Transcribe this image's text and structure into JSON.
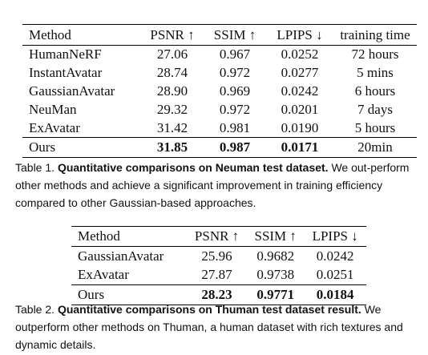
{
  "table1": {
    "headers": [
      "Method",
      "PSNR ↑",
      "SSIM ↑",
      "LPIPS ↓",
      "training time"
    ],
    "rows": [
      [
        "HumanNeRF",
        "27.06",
        "0.967",
        "0.0252",
        "72 hours"
      ],
      [
        "InstantAvatar",
        "28.74",
        "0.972",
        "0.0277",
        "5 mins"
      ],
      [
        "GaussianAvatar",
        "28.90",
        "0.969",
        "0.0242",
        "6 hours"
      ],
      [
        "NeuMan",
        "29.32",
        "0.972",
        "0.0201",
        "7 days"
      ],
      [
        "ExAvatar",
        "31.42",
        "0.981",
        "0.0190",
        "5 hours"
      ]
    ],
    "ours": [
      "Ours",
      "31.85",
      "0.987",
      "0.0171",
      "20min"
    ],
    "caption_label": "Table 1.",
    "caption_title": "Quantitative comparisons on Neuman test dataset.",
    "caption_text": "We out-perform other methods and achieve a significant improvement in training efficiency compared to other Gaussian-based approaches."
  },
  "table2": {
    "headers": [
      "Method",
      "PSNR ↑",
      "SSIM ↑",
      "LPIPS ↓"
    ],
    "rows": [
      [
        "GaussianAvatar",
        "25.96",
        "0.9682",
        "0.0242"
      ],
      [
        "ExAvatar",
        "27.87",
        "0.9738",
        "0.0251"
      ]
    ],
    "ours": [
      "Ours",
      "28.23",
      "0.9771",
      "0.0184"
    ],
    "caption_label": "Table 2.",
    "caption_title": "Quantitative comparisons on Thuman test dataset result.",
    "caption_text": "We outperform other methods on Thuman, a human dataset with rich textures and dynamic details."
  }
}
